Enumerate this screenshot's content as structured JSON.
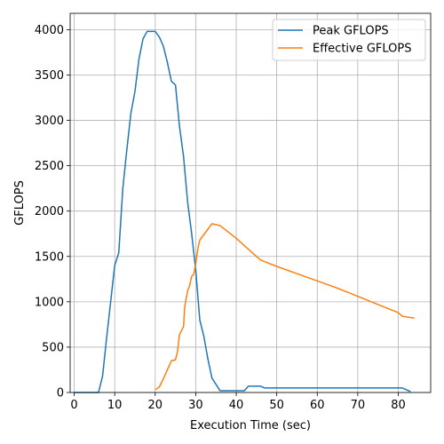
{
  "chart_data": {
    "type": "line",
    "xlabel": "Execution Time (sec)",
    "ylabel": "GFLOPS",
    "xlim": [
      -1,
      88
    ],
    "ylim": [
      0,
      4180
    ],
    "xticks": [
      0,
      10,
      20,
      30,
      40,
      50,
      60,
      70,
      80
    ],
    "yticks": [
      0,
      500,
      1000,
      1500,
      2000,
      2500,
      3000,
      3500,
      4000
    ],
    "grid": true,
    "legend_position": "top-right",
    "series": [
      {
        "name": "Peak GFLOPS",
        "color": "#1f77b4",
        "points": [
          [
            0,
            0
          ],
          [
            6,
            0
          ],
          [
            7,
            180
          ],
          [
            8,
            600
          ],
          [
            9,
            1000
          ],
          [
            10,
            1400
          ],
          [
            11,
            1540
          ],
          [
            12,
            2250
          ],
          [
            13,
            2680
          ],
          [
            14,
            3080
          ],
          [
            15,
            3320
          ],
          [
            16,
            3680
          ],
          [
            17,
            3900
          ],
          [
            18,
            3980
          ],
          [
            19,
            3980
          ],
          [
            20,
            3980
          ],
          [
            21,
            3920
          ],
          [
            22,
            3820
          ],
          [
            23,
            3640
          ],
          [
            24,
            3430
          ],
          [
            25,
            3390
          ],
          [
            26,
            2930
          ],
          [
            27,
            2600
          ],
          [
            28,
            2100
          ],
          [
            29,
            1750
          ],
          [
            30,
            1350
          ],
          [
            31,
            800
          ],
          [
            32,
            620
          ],
          [
            33,
            370
          ],
          [
            34,
            160
          ],
          [
            35,
            90
          ],
          [
            36,
            20
          ],
          [
            40,
            20
          ],
          [
            42,
            20
          ],
          [
            43,
            70
          ],
          [
            46,
            70
          ],
          [
            47,
            50
          ],
          [
            60,
            50
          ],
          [
            70,
            50
          ],
          [
            81,
            50
          ],
          [
            83,
            10
          ]
        ]
      },
      {
        "name": "Effective GFLOPS",
        "color": "#ff7f0e",
        "points": [
          [
            20,
            30
          ],
          [
            21,
            60
          ],
          [
            22,
            150
          ],
          [
            23,
            250
          ],
          [
            23.5,
            300
          ],
          [
            24,
            350
          ],
          [
            25,
            360
          ],
          [
            25.5,
            450
          ],
          [
            26,
            640
          ],
          [
            26.5,
            680
          ],
          [
            27,
            730
          ],
          [
            27.3,
            950
          ],
          [
            27.7,
            1050
          ],
          [
            28,
            1120
          ],
          [
            28.5,
            1180
          ],
          [
            29,
            1280
          ],
          [
            29.5,
            1300
          ],
          [
            30,
            1420
          ],
          [
            30.5,
            1580
          ],
          [
            31,
            1680
          ],
          [
            32,
            1740
          ],
          [
            33,
            1800
          ],
          [
            34,
            1860
          ],
          [
            35,
            1850
          ],
          [
            36,
            1840
          ],
          [
            38,
            1770
          ],
          [
            40,
            1700
          ],
          [
            42,
            1620
          ],
          [
            44,
            1540
          ],
          [
            46,
            1460
          ],
          [
            50,
            1390
          ],
          [
            55,
            1310
          ],
          [
            60,
            1230
          ],
          [
            65,
            1150
          ],
          [
            70,
            1060
          ],
          [
            75,
            970
          ],
          [
            80,
            880
          ],
          [
            81,
            840
          ],
          [
            84,
            820
          ]
        ]
      }
    ]
  }
}
